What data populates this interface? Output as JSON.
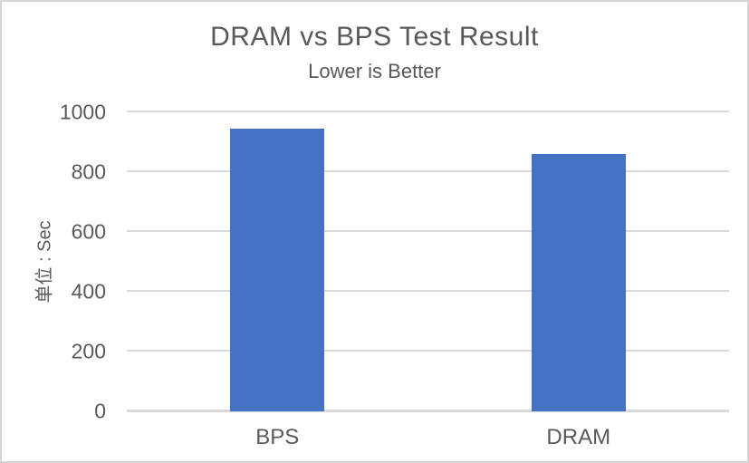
{
  "frame": {
    "background": "#FFFFFF",
    "border_color": "#D5D5D5"
  },
  "chart_data": {
    "type": "bar",
    "title": "DRAM vs BPS Test Result",
    "subtitle": "Lower is Better",
    "ylabel": "单位 : Sec",
    "xlabel": "",
    "categories": [
      "BPS",
      "DRAM"
    ],
    "values": [
      945,
      860
    ],
    "ylim": [
      0,
      1000
    ],
    "yticks": [
      0,
      200,
      400,
      600,
      800,
      1000
    ],
    "grid": true,
    "legend": "none",
    "colors": {
      "bar": "#4472C4",
      "text": "#595959",
      "gridline": "#D9D9D9",
      "axis_line": "#D9D9D9"
    }
  }
}
